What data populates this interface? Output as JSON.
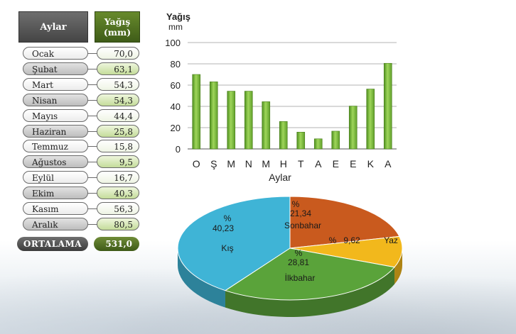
{
  "table": {
    "header_months": "Aylar",
    "header_rain_line1": "Yağış",
    "header_rain_line2": "(mm)",
    "rows": [
      {
        "month": "Ocak",
        "value": "70,0"
      },
      {
        "month": "Şubat",
        "value": "63,1"
      },
      {
        "month": "Mart",
        "value": "54,3"
      },
      {
        "month": "Nisan",
        "value": "54,3"
      },
      {
        "month": "Mayıs",
        "value": "44,4"
      },
      {
        "month": "Haziran",
        "value": "25,8"
      },
      {
        "month": "Temmuz",
        "value": "15,8"
      },
      {
        "month": "Ağustos",
        "value": "9,5"
      },
      {
        "month": "Eylül",
        "value": "16,7"
      },
      {
        "month": "Ekim",
        "value": "40,3"
      },
      {
        "month": "Kasım",
        "value": "56,3"
      },
      {
        "month": "Aralık",
        "value": "80,5"
      }
    ],
    "average_label": "ORTALAMA",
    "average_value": "531,0"
  },
  "chart_data": [
    {
      "type": "bar",
      "ylabel_line1": "Yağış",
      "ylabel_line2": "mm",
      "xlabel": "Aylar",
      "categories": [
        "O",
        "Ş",
        "M",
        "N",
        "M",
        "H",
        "T",
        "A",
        "E",
        "E",
        "K",
        "A"
      ],
      "values": [
        70.0,
        63.1,
        54.3,
        54.3,
        44.4,
        25.8,
        15.8,
        9.5,
        16.7,
        40.3,
        56.3,
        80.5
      ],
      "ylim": [
        0,
        100
      ],
      "yticks": [
        0,
        20,
        40,
        60,
        80,
        100
      ],
      "grid": true,
      "color": "#7dbb3e"
    },
    {
      "type": "pie",
      "slices": [
        {
          "season": "Sonbahar",
          "percent_label": "%",
          "value_label": "21,34",
          "value": 21.34,
          "color": "#c95a1e"
        },
        {
          "season": "Yaz",
          "percent_label": "%",
          "value_label": "9,62",
          "value": 9.62,
          "color": "#f2b81c"
        },
        {
          "season": "İlkbahar",
          "percent_label": "%",
          "value_label": "28,81",
          "value": 28.81,
          "color": "#5aa33a"
        },
        {
          "season": "Kış",
          "percent_label": "%",
          "value_label": "40,23",
          "value": 40.23,
          "color": "#3fb4d6"
        }
      ]
    }
  ]
}
